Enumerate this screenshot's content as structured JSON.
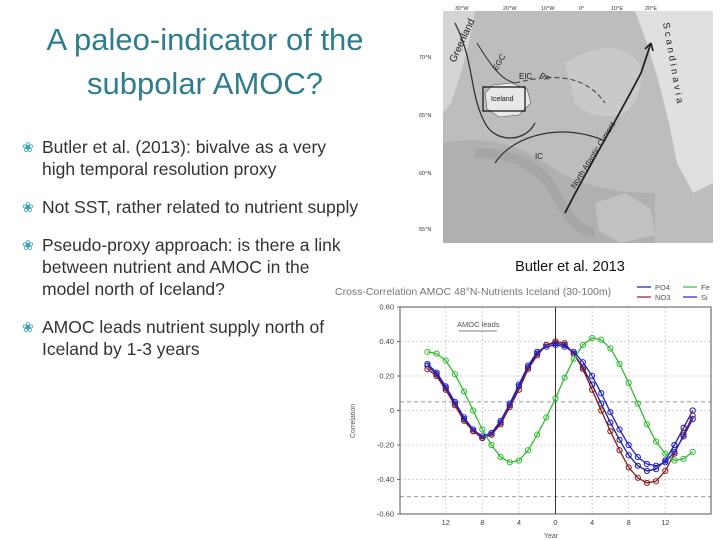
{
  "slide": {
    "title": "A paleo-indicator of the subpolar AMOC?",
    "bullets": [
      "Butler et al. (2013): bivalve as a very high temporal resolution proxy",
      "Not SST, rather related to nutrient supply",
      "Pseudo-proxy approach: is there a link between nutrient and AMOC in the model north of Iceland?",
      "AMOC leads nutrient supply north of Iceland by 1-3 years"
    ],
    "map_caption": "Butler et al. 2013"
  },
  "map": {
    "lon_labels": [
      "30°W",
      "20°W",
      "10°W",
      "0°",
      "10°E",
      "20°E"
    ],
    "lat_labels": [
      "70°N",
      "65°N",
      "60°N",
      "55°N"
    ],
    "place_labels": [
      "Greenland",
      "Iceland",
      "Scandinavia",
      "North Atlantic Current"
    ],
    "current_labels": [
      "EGC",
      "EIC",
      "IC",
      "PF"
    ]
  },
  "colors": {
    "accent": "#2e7d8c",
    "bullet": "#36a0b5",
    "po4": "#1a1aa0",
    "no3": "#8b1a1a",
    "fe": "#33bb33",
    "si": "#2222cc"
  },
  "chart_data": {
    "type": "line",
    "title": "Cross-Correlation AMOC 48°N-Nutrients Iceland (30-100m)",
    "xlabel": "Year",
    "ylabel": "Correlation",
    "annotation": "AMOC leads",
    "xlim": [
      -17,
      17
    ],
    "ylim": [
      -0.6,
      0.6
    ],
    "x_ticks": [
      -12,
      -8,
      -4,
      0,
      4,
      8,
      12
    ],
    "x_tick_labels": [
      "12",
      "8",
      "4",
      "0",
      "4",
      "8",
      "12"
    ],
    "y_ticks": [
      0.6,
      0.4,
      0.2,
      0,
      -0.2,
      -0.4,
      -0.6
    ],
    "y_tick_labels": [
      "0.60",
      "0.40",
      "0.20",
      "0",
      "-0.20",
      "-0.40",
      "-0.60"
    ],
    "significance_level": [
      0.05,
      -0.5
    ],
    "x": [
      -14,
      -13,
      -12,
      -11,
      -10,
      -9,
      -8,
      -7,
      -6,
      -5,
      -4,
      -3,
      -2,
      -1,
      0,
      1,
      2,
      3,
      4,
      5,
      6,
      7,
      8,
      9,
      10,
      11,
      12,
      13,
      14,
      15
    ],
    "series": [
      {
        "name": "PO4",
        "values": [
          0.26,
          0.21,
          0.13,
          0.04,
          -0.05,
          -0.12,
          -0.16,
          -0.14,
          -0.07,
          0.03,
          0.14,
          0.25,
          0.33,
          0.38,
          0.39,
          0.38,
          0.33,
          0.25,
          0.15,
          0.04,
          -0.07,
          -0.17,
          -0.26,
          -0.32,
          -0.35,
          -0.34,
          -0.29,
          -0.2,
          -0.1,
          0.0
        ]
      },
      {
        "name": "NO3",
        "values": [
          0.24,
          0.2,
          0.12,
          0.03,
          -0.06,
          -0.12,
          -0.16,
          -0.14,
          -0.08,
          0.02,
          0.12,
          0.24,
          0.32,
          0.38,
          0.4,
          0.39,
          0.33,
          0.24,
          0.12,
          0.0,
          -0.12,
          -0.23,
          -0.33,
          -0.39,
          -0.42,
          -0.41,
          -0.35,
          -0.25,
          -0.14,
          -0.03
        ]
      },
      {
        "name": "Fe",
        "values": [
          0.34,
          0.33,
          0.29,
          0.21,
          0.11,
          0.0,
          -0.11,
          -0.2,
          -0.27,
          -0.3,
          -0.29,
          -0.23,
          -0.14,
          -0.04,
          0.07,
          0.19,
          0.3,
          0.38,
          0.42,
          0.41,
          0.36,
          0.27,
          0.16,
          0.04,
          -0.08,
          -0.18,
          -0.25,
          -0.29,
          -0.28,
          -0.24
        ]
      },
      {
        "name": "Si",
        "values": [
          0.27,
          0.22,
          0.14,
          0.05,
          -0.04,
          -0.11,
          -0.15,
          -0.13,
          -0.06,
          0.04,
          0.15,
          0.26,
          0.34,
          0.37,
          0.38,
          0.37,
          0.34,
          0.28,
          0.2,
          0.1,
          -0.01,
          -0.11,
          -0.2,
          -0.27,
          -0.31,
          -0.32,
          -0.3,
          -0.24,
          -0.15,
          -0.05
        ]
      }
    ]
  }
}
